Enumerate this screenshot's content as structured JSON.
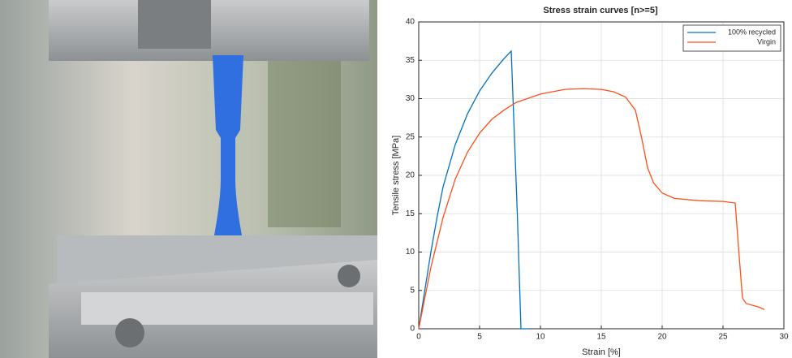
{
  "chart_data": {
    "type": "line",
    "title": "Stress strain curves [n>=5]",
    "x_label": "Strain [%]",
    "y_label": "Tensile stress [MPa]",
    "xlim": [
      0,
      30
    ],
    "xticks": [
      0,
      5,
      10,
      15,
      20,
      25,
      30
    ],
    "ylim": [
      0,
      40
    ],
    "yticks": [
      0,
      5,
      10,
      15,
      20,
      25,
      30,
      35,
      40
    ],
    "grid": true,
    "legend": "upper right",
    "series": [
      {
        "name": "100% recycled",
        "color": "#0072bd",
        "x": [
          0,
          0.5,
          1,
          1.5,
          2,
          3,
          4,
          5,
          6,
          7,
          7.6,
          8.1,
          8.4,
          9
        ],
        "values": [
          0,
          5,
          10,
          14.5,
          18.5,
          24,
          28,
          31,
          33.3,
          35.2,
          36.2,
          15,
          0,
          0
        ]
      },
      {
        "name": "Virgin",
        "color": "#ff4f1a",
        "x": [
          0,
          1,
          2,
          3,
          4,
          5,
          6,
          7,
          8,
          10,
          12,
          13.5,
          15,
          16,
          17,
          17.8,
          18.3,
          18.8,
          19.3,
          20,
          21,
          23,
          25,
          26,
          26.3,
          26.6,
          26.9,
          28,
          28.4
        ],
        "values": [
          0,
          8,
          14.5,
          19.5,
          23,
          25.5,
          27.3,
          28.5,
          29.5,
          30.6,
          31.2,
          31.3,
          31.2,
          30.9,
          30.2,
          28.5,
          25,
          21,
          19,
          17.7,
          17,
          16.7,
          16.6,
          16.4,
          10,
          4,
          3.3,
          2.8,
          2.5
        ]
      }
    ]
  }
}
